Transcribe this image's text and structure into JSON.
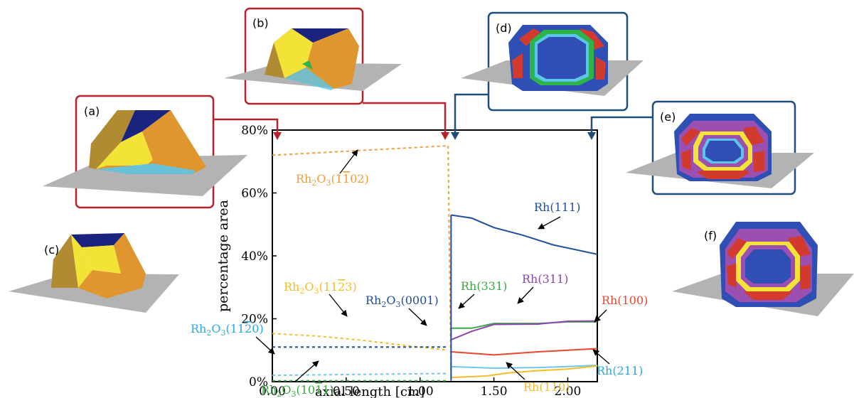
{
  "chart_data": {
    "type": "line",
    "xlabel": "axial length [cm]",
    "ylabel": "percentage area",
    "xlim": [
      0.0,
      2.2
    ],
    "ylim": [
      0,
      80
    ],
    "x_ticks": [
      {
        "value": 0.0,
        "label": "0.00"
      },
      {
        "value": 0.5,
        "label": "0.50"
      },
      {
        "value": 1.0,
        "label": "1.00"
      },
      {
        "value": 1.5,
        "label": "1.50"
      },
      {
        "value": 2.0,
        "label": "2.00"
      }
    ],
    "y_ticks": [
      {
        "value": 0,
        "label": "0%"
      },
      {
        "value": 20,
        "label": "20%"
      },
      {
        "value": 40,
        "label": "40%"
      },
      {
        "value": 60,
        "label": "60%"
      },
      {
        "value": 80,
        "label": "80%"
      }
    ],
    "grid": false,
    "series": [
      {
        "name": "Rh2O3(1-102)",
        "color": "#f39c35",
        "dashed": true,
        "x": [
          0.0,
          1.19
        ],
        "y": [
          72,
          75
        ]
      },
      {
        "name": "Rh2O3(11-23)",
        "color": "#f5bd28",
        "dashed": true,
        "x": [
          0.0,
          0.3,
          0.6,
          0.9,
          1.19
        ],
        "y": [
          15.3,
          14.5,
          13.2,
          11.5,
          10.0
        ]
      },
      {
        "name": "Rh2O3(0001)",
        "color": "#1f4e9b",
        "dashed": true,
        "x": [
          0.0,
          1.19
        ],
        "y": [
          11.0,
          11.0
        ]
      },
      {
        "name": "Rh2O3(11-20)",
        "color": "#6ec6ea",
        "dashed": true,
        "x": [
          0.0,
          1.19
        ],
        "y": [
          2.0,
          2.6
        ]
      },
      {
        "name": "Rh2O3(10-11)",
        "color": "#3aa845",
        "dashed": true,
        "x": [
          0.0,
          1.19
        ],
        "y": [
          0.3,
          0.3
        ]
      },
      {
        "name": "Rh(111)",
        "color": "#1f4e9b",
        "dashed": false,
        "x": [
          1.21,
          1.35,
          1.5,
          1.7,
          1.9,
          2.2
        ],
        "y": [
          53,
          52,
          49,
          46.5,
          43.5,
          40.5
        ]
      },
      {
        "name": "Rh(331)",
        "color": "#3aa845",
        "dashed": false,
        "x": [
          1.21,
          1.35,
          1.5,
          1.8,
          2.0,
          2.2
        ],
        "y": [
          17,
          17,
          18.5,
          18.5,
          19,
          19
        ]
      },
      {
        "name": "Rh(311)",
        "color": "#8e44ad",
        "dashed": false,
        "x": [
          1.21,
          1.35,
          1.5,
          1.8,
          2.0,
          2.2
        ],
        "y": [
          13.3,
          16,
          18.2,
          18.3,
          19.2,
          19.3
        ]
      },
      {
        "name": "Rh(100)",
        "color": "#e8462b",
        "dashed": false,
        "x": [
          1.21,
          1.5,
          1.8,
          2.0,
          2.2
        ],
        "y": [
          9.5,
          8.5,
          9.5,
          10,
          10.5
        ]
      },
      {
        "name": "Rh(211)",
        "color": "#6ec6ea",
        "dashed": false,
        "x": [
          1.21,
          1.5,
          1.8,
          2.0,
          2.2
        ],
        "y": [
          4.8,
          4.3,
          4.5,
          4.8,
          5.2
        ]
      },
      {
        "name": "Rh(110)",
        "color": "#f5bd28",
        "dashed": false,
        "x": [
          1.21,
          1.45,
          1.6,
          1.8,
          2.0,
          2.2
        ],
        "y": [
          1.3,
          1.8,
          2.8,
          3.5,
          4.0,
          5.0
        ]
      }
    ],
    "transition": {
      "x_ox": 1.19,
      "x_met": 1.21,
      "color": "#f39c35",
      "y_from": 75,
      "y_to": 0.3
    }
  },
  "panels": {
    "a": "(a)",
    "b": "(b)",
    "c": "(c)",
    "d": "(d)",
    "e": "(e)",
    "f": "(f)"
  },
  "series_labels": {
    "rh2o3_1102": {
      "base": "Rh",
      "sub1": "2",
      "mid": "O",
      "sub2": "3",
      "tail": "(1",
      "bar": "1",
      "end": "02)"
    },
    "rh2o3_1123": {
      "base": "Rh",
      "sub1": "2",
      "mid": "O",
      "sub2": "3",
      "tail": "(11",
      "bar": "2",
      "end": "3)"
    },
    "rh2o3_0001": {
      "base": "Rh",
      "sub1": "2",
      "mid": "O",
      "sub2": "3",
      "tail": "(0001)"
    },
    "rh2o3_1120": {
      "base": "Rh",
      "sub1": "2",
      "mid": "O",
      "sub2": "3",
      "tail": "(11",
      "bar": "2",
      "end": "0)"
    },
    "rh2o3_1011": {
      "base": "Rh",
      "sub1": "2",
      "mid": "O",
      "sub2": "3",
      "tail": "(10",
      "bar": "1",
      "end": "1)"
    },
    "rh111": "Rh(111)",
    "rh331": "Rh(331)",
    "rh311": "Rh(311)",
    "rh100": "Rh(100)",
    "rh211": "Rh(211)",
    "rh110": "Rh(110)"
  },
  "colors": {
    "oxide_frame": "#b5232a",
    "metal_frame": "#1f4e7a",
    "substrate": "#b3b3b3",
    "oxide_top": "#1a237e",
    "oxide_main": "#e0962f",
    "oxide_side": "#b08b32",
    "oxide_yellow": "#f2e336",
    "metal_blue": "#2f4fb5",
    "metal_red": "#d23a2e",
    "metal_purple": "#9b4fb0",
    "metal_green": "#2db34a",
    "metal_yellow": "#f2e336",
    "metal_cyan": "#5bc6ea"
  }
}
